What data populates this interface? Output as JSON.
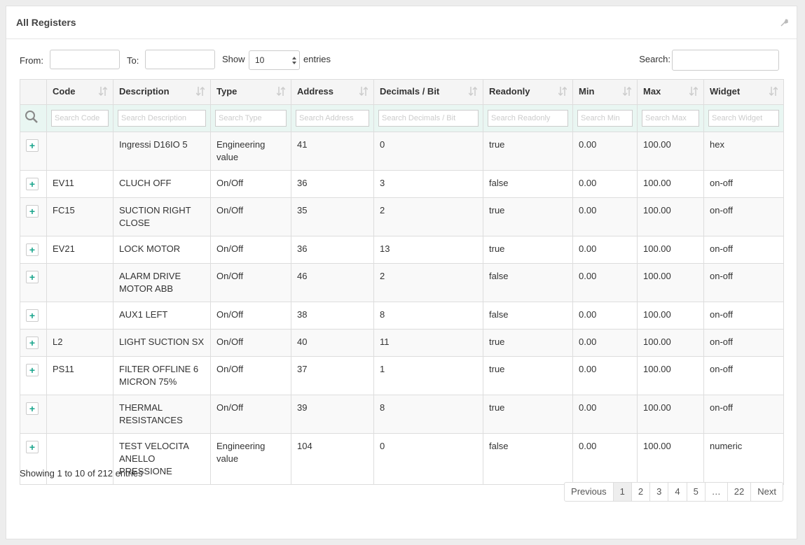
{
  "panel": {
    "title": "All Registers"
  },
  "filters": {
    "from_label": "From:",
    "to_label": "To:",
    "show_label": "Show",
    "page_size": "10",
    "entries_label": "entries",
    "search_label": "Search:"
  },
  "table": {
    "columns": [
      "Code",
      "Description",
      "Type",
      "Address",
      "Decimals / Bit",
      "Readonly",
      "Min",
      "Max",
      "Widget"
    ],
    "search_placeholders": [
      "Search Code",
      "Search Description",
      "Search Type",
      "Search Address",
      "Search Decimals / Bit",
      "Search Readonly",
      "Search Min",
      "Search Max",
      "Search Widget"
    ],
    "expand_label": "+",
    "rows": [
      [
        "",
        "Ingressi D16IO 5",
        "Engineering value",
        "41",
        "0",
        "true",
        "0.00",
        "100.00",
        "hex"
      ],
      [
        "EV11",
        "CLUCH OFF",
        "On/Off",
        "36",
        "3",
        "false",
        "0.00",
        "100.00",
        "on-off"
      ],
      [
        "FC15",
        "SUCTION RIGHT CLOSE",
        "On/Off",
        "35",
        "2",
        "true",
        "0.00",
        "100.00",
        "on-off"
      ],
      [
        "EV21",
        "LOCK MOTOR",
        "On/Off",
        "36",
        "13",
        "true",
        "0.00",
        "100.00",
        "on-off"
      ],
      [
        "",
        "ALARM DRIVE MOTOR ABB",
        "On/Off",
        "46",
        "2",
        "false",
        "0.00",
        "100.00",
        "on-off"
      ],
      [
        "",
        "AUX1 LEFT",
        "On/Off",
        "38",
        "8",
        "false",
        "0.00",
        "100.00",
        "on-off"
      ],
      [
        "L2",
        "LIGHT SUCTION SX",
        "On/Off",
        "40",
        "11",
        "true",
        "0.00",
        "100.00",
        "on-off"
      ],
      [
        "PS11",
        "FILTER OFFLINE 6 MICRON 75%",
        "On/Off",
        "37",
        "1",
        "true",
        "0.00",
        "100.00",
        "on-off"
      ],
      [
        "",
        "THERMAL RESISTANCES",
        "On/Off",
        "39",
        "8",
        "true",
        "0.00",
        "100.00",
        "on-off"
      ],
      [
        "",
        "TEST VELOCITA ANELLO PRESSIONE",
        "Engineering value",
        "104",
        "0",
        "false",
        "0.00",
        "100.00",
        "numeric"
      ]
    ]
  },
  "info": "Showing 1 to 10 of 212 entries",
  "pagination": [
    "Previous",
    "1",
    "2",
    "3",
    "4",
    "5",
    "…",
    "22",
    "Next"
  ]
}
